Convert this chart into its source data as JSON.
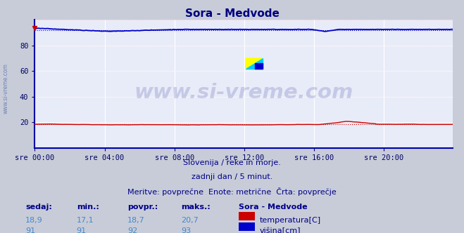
{
  "title": "Sora - Medvode",
  "title_color": "#000080",
  "outer_bg_color": "#c8ccd8",
  "plot_bg_color": "#e8ecf8",
  "grid_v_color": "#ffffff",
  "grid_h_color": "#ffb0b0",
  "ylabel_left": "",
  "xlabel": "",
  "xlim": [
    0,
    287
  ],
  "ylim": [
    0,
    100
  ],
  "yticks": [
    20,
    40,
    60,
    80
  ],
  "xtick_labels": [
    "sre 00:00",
    "sre 04:00",
    "sre 08:00",
    "sre 12:00",
    "sre 16:00",
    "sre 20:00"
  ],
  "xtick_positions": [
    0,
    48,
    96,
    144,
    192,
    240
  ],
  "temp_color": "#cc0000",
  "height_color": "#0000cc",
  "avg_temp": 18.7,
  "avg_height": 92.0,
  "temp_min": 17.1,
  "temp_max": 20.7,
  "temp_now": 18.9,
  "height_min": 91,
  "height_max": 93,
  "height_now": 91,
  "watermark": "www.si-vreme.com",
  "subtitle1": "Slovenija / reke in morje.",
  "subtitle2": "zadnji dan / 5 minut.",
  "subtitle3": "Meritve: povprečne  Enote: metrične  Črta: povprečje",
  "legend_title": "Sora - Medvode",
  "legend_temp": "temperatura[C]",
  "legend_height": "višina[cm]",
  "table_headers": [
    "sedaj:",
    "min.:",
    "povpr.:",
    "maks.:"
  ],
  "table_temp": [
    "18,9",
    "17,1",
    "18,7",
    "20,7"
  ],
  "table_height": [
    "91",
    "91",
    "92",
    "93"
  ],
  "side_label": "www.si-vreme.com"
}
